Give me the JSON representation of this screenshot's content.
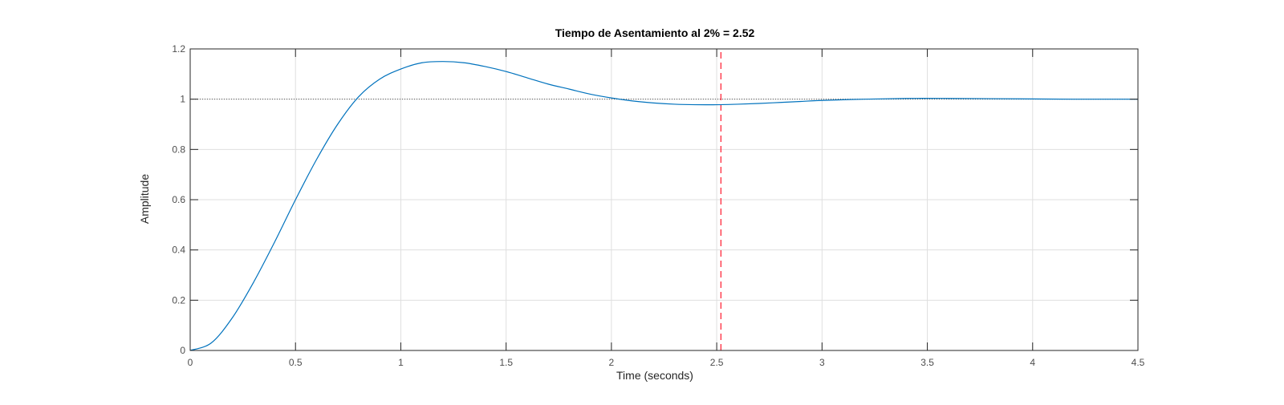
{
  "chart_data": {
    "type": "line",
    "title": "Tiempo de Asentamiento al 2% = 2.52",
    "xlabel": "Time (seconds)",
    "ylabel": "Amplitude",
    "xlim": [
      0,
      4.5
    ],
    "ylim": [
      0,
      1.2
    ],
    "xticks": [
      0,
      0.5,
      1,
      1.5,
      2,
      2.5,
      3,
      3.5,
      4,
      4.5
    ],
    "yticks": [
      0,
      0.2,
      0.4,
      0.6,
      0.8,
      1,
      1.2
    ],
    "xtick_labels": [
      "0",
      "0.5",
      "1",
      "1.5",
      "2",
      "2.5",
      "3",
      "3.5",
      "4",
      "4.5"
    ],
    "ytick_labels": [
      "0",
      "0.2",
      "0.4",
      "0.6",
      "0.8",
      "1",
      "1.2"
    ],
    "grid": true,
    "series": [
      {
        "color": "#0072BD",
        "x": [
          0,
          0.1,
          0.2,
          0.3,
          0.4,
          0.5,
          0.6,
          0.7,
          0.8,
          0.9,
          1.0,
          1.1,
          1.2,
          1.3,
          1.4,
          1.5,
          1.6,
          1.7,
          1.8,
          1.9,
          2.0,
          2.1,
          2.2,
          2.3,
          2.4,
          2.5,
          2.6,
          2.7,
          2.8,
          2.9,
          3.0,
          3.2,
          3.4,
          3.6,
          3.8,
          4.0,
          4.2,
          4.5
        ],
        "y": [
          0,
          0.03,
          0.13,
          0.27,
          0.43,
          0.6,
          0.76,
          0.9,
          1.01,
          1.08,
          1.12,
          1.145,
          1.15,
          1.145,
          1.13,
          1.11,
          1.085,
          1.06,
          1.04,
          1.02,
          1.005,
          0.993,
          0.985,
          0.98,
          0.978,
          0.978,
          0.98,
          0.983,
          0.987,
          0.991,
          0.995,
          1.0,
          1.003,
          1.003,
          1.002,
          1.001,
          1.0,
          1.0
        ]
      }
    ],
    "reference_line": {
      "y": 1,
      "color": "#555555",
      "style": "dotted"
    },
    "settling_line": {
      "x": 2.52,
      "color": "#FF2A3C",
      "style": "dashed"
    }
  }
}
